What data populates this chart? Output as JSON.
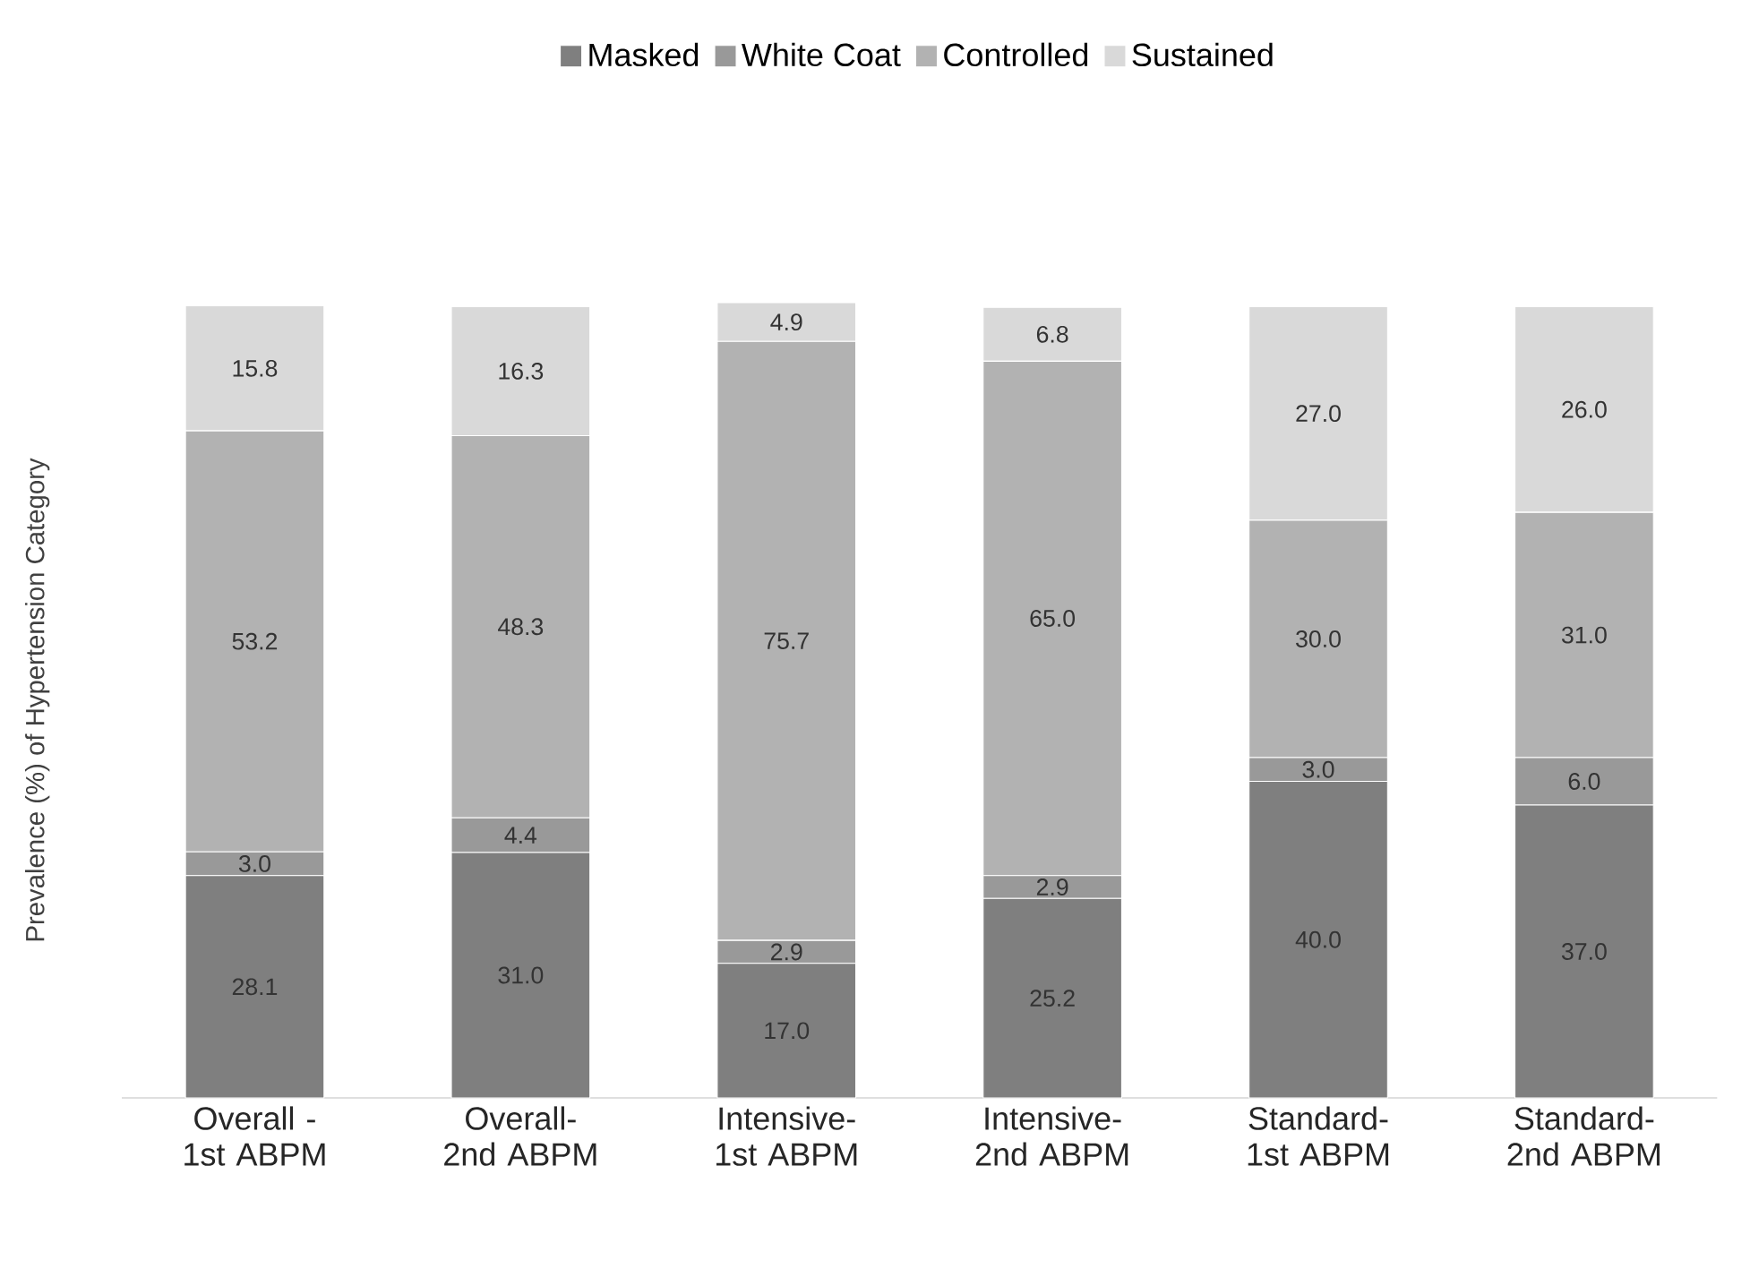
{
  "chart_data": {
    "type": "bar",
    "stacked": true,
    "ylabel": "Prevalence (%) of Hypertension Category",
    "categories": [
      "Overall - 1st ABPM",
      "Overall-2nd ABPM",
      "Intensive-1st ABPM",
      "Intensive-2nd ABPM",
      "Standard-1st ABPM",
      "Standard-2nd ABPM"
    ],
    "series": [
      {
        "name": "Masked",
        "color": "#7f7f7f",
        "values": [
          28.1,
          31.0,
          17.0,
          25.2,
          40.0,
          37.0
        ],
        "value_labels": [
          "28.1",
          "31.0",
          "17.0",
          "25.2",
          "40.0",
          "37.0"
        ]
      },
      {
        "name": "White Coat",
        "color": "#999999",
        "values": [
          3.0,
          4.4,
          2.9,
          2.9,
          3.0,
          6.0
        ],
        "value_labels": [
          "3.0",
          "4.4",
          "2.9",
          "2.9",
          "3.0",
          "6.0"
        ]
      },
      {
        "name": "Controlled",
        "color": "#b2b2b2",
        "values": [
          53.2,
          48.3,
          75.7,
          65.0,
          30.0,
          31.0
        ],
        "value_labels": [
          "53.2",
          "48.3",
          "75.7",
          "65.0",
          "30.0",
          "31.0"
        ]
      },
      {
        "name": "Sustained",
        "color": "#d9d9d9",
        "values": [
          15.8,
          16.3,
          4.9,
          6.8,
          27.0,
          26.0
        ],
        "value_labels": [
          "15.8",
          "16.3",
          "4.9",
          "6.8",
          "27.0",
          "26.0"
        ]
      }
    ],
    "legend": "top",
    "tick_labels": "x"
  }
}
